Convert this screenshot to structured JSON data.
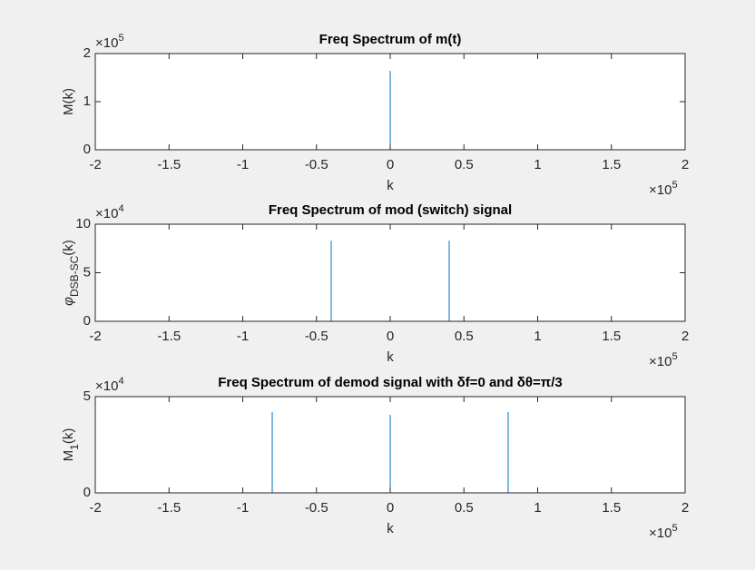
{
  "chart_data": [
    {
      "type": "line",
      "title": "Freq Spectrum of m(t)",
      "xlabel": "k",
      "ylabel": [
        {
          "text": "M"
        },
        {
          "text": "(k)"
        }
      ],
      "x_multiplier": {
        "base": "×10",
        "exponent": "5"
      },
      "y_multiplier": {
        "base": "×10",
        "exponent": "5"
      },
      "x": [
        -200000,
        0,
        0,
        0,
        200000
      ],
      "series": [
        {
          "color": "#0072bd",
          "values": [
            0,
            0,
            164000,
            0,
            0
          ]
        }
      ],
      "xlim": [
        -200000,
        200000
      ],
      "xticks": [
        {
          "value": -200000,
          "label": "-2"
        },
        {
          "value": -150000,
          "label": "-1.5"
        },
        {
          "value": -100000,
          "label": "-1"
        },
        {
          "value": -50000,
          "label": "-0.5"
        },
        0,
        {
          "value": 50000,
          "label": "0.5"
        },
        {
          "value": 100000,
          "label": "1"
        },
        {
          "value": 150000,
          "label": "1.5"
        },
        {
          "value": 200000,
          "label": "2"
        }
      ],
      "ylim": [
        0,
        200000
      ],
      "yticks": [
        0,
        {
          "value": 100000,
          "label": "1"
        },
        {
          "value": 200000,
          "label": "2"
        }
      ],
      "grid": false
    },
    {
      "type": "line",
      "title": "Freq Spectrum of mod (switch) signal",
      "xlabel": "k",
      "ylabel": [
        {
          "text": "φ",
          "italic": true
        },
        {
          "text": "DSB-SC",
          "sub": true
        },
        {
          "text": "(k)"
        }
      ],
      "x_multiplier": {
        "base": "×10",
        "exponent": "5"
      },
      "y_multiplier": {
        "base": "×10",
        "exponent": "4"
      },
      "x": [
        -200000,
        -40000,
        -40000,
        -40000,
        40000,
        40000,
        40000,
        200000
      ],
      "series": [
        {
          "color": "#0072bd",
          "values": [
            0,
            0,
            83000,
            0,
            0,
            83000,
            0,
            0
          ]
        }
      ],
      "xlim": [
        -200000,
        200000
      ],
      "xticks": [
        {
          "value": -200000,
          "label": "-2"
        },
        {
          "value": -150000,
          "label": "-1.5"
        },
        {
          "value": -100000,
          "label": "-1"
        },
        {
          "value": -50000,
          "label": "-0.5"
        },
        0,
        {
          "value": 50000,
          "label": "0.5"
        },
        {
          "value": 100000,
          "label": "1"
        },
        {
          "value": 150000,
          "label": "1.5"
        },
        {
          "value": 200000,
          "label": "2"
        }
      ],
      "ylim": [
        0,
        100000
      ],
      "yticks": [
        0,
        {
          "value": 50000,
          "label": "5"
        },
        {
          "value": 100000,
          "label": "10"
        }
      ],
      "grid": false
    },
    {
      "type": "line",
      "title": "Freq Spectrum of demod signal with δf=0 and δθ=π/3",
      "xlabel": "k",
      "ylabel": [
        {
          "text": "M"
        },
        {
          "text": "1",
          "sub": true
        },
        {
          "text": "(k)"
        }
      ],
      "x_multiplier": {
        "base": "×10",
        "exponent": "5"
      },
      "y_multiplier": {
        "base": "×10",
        "exponent": "4"
      },
      "x": [
        -200000,
        -80000,
        -80000,
        -80000,
        0,
        0,
        0,
        80000,
        80000,
        80000,
        200000
      ],
      "series": [
        {
          "color": "#0072bd",
          "values": [
            0,
            0,
            42000,
            0,
            0,
            40500,
            0,
            0,
            42000,
            0,
            0
          ]
        }
      ],
      "xlim": [
        -200000,
        200000
      ],
      "xticks": [
        {
          "value": -200000,
          "label": "-2"
        },
        {
          "value": -150000,
          "label": "-1.5"
        },
        {
          "value": -100000,
          "label": "-1"
        },
        {
          "value": -50000,
          "label": "-0.5"
        },
        0,
        {
          "value": 50000,
          "label": "0.5"
        },
        {
          "value": 100000,
          "label": "1"
        },
        {
          "value": 150000,
          "label": "1.5"
        },
        {
          "value": 200000,
          "label": "2"
        }
      ],
      "ylim": [
        0,
        50000
      ],
      "yticks": [
        0,
        {
          "value": 50000,
          "label": "5"
        }
      ],
      "grid": false
    }
  ]
}
